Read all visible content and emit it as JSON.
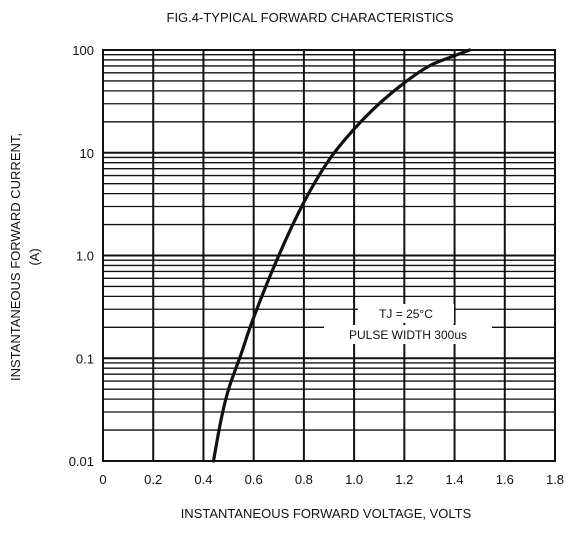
{
  "chart_data": {
    "type": "line",
    "title": "FIG.4-TYPICAL FORWARD CHARACTERISTICS",
    "xlabel": "INSTANTANEOUS FORWARD VOLTAGE, VOLTS",
    "ylabel_line1": "INSTANTANEOUS FORWARD CURRENT,",
    "ylabel_line2": "(A)",
    "x_scale": "linear",
    "y_scale": "log",
    "xlim": [
      0,
      1.8
    ],
    "ylim": [
      0.01,
      100
    ],
    "x_ticks": [
      0,
      0.2,
      0.4,
      0.6,
      0.8,
      1.0,
      1.2,
      1.4,
      1.6,
      1.8
    ],
    "x_tick_labels": [
      "0",
      "0.2",
      "0.4",
      "0.6",
      "0.8",
      "1.0",
      "1.2",
      "1.4",
      "1.6",
      "1.8"
    ],
    "y_ticks": [
      0.01,
      0.1,
      1,
      10,
      100
    ],
    "y_tick_labels": [
      "0.01",
      "0.1",
      "1.0",
      "10",
      "100"
    ],
    "grid": true,
    "annotations": [
      "TJ = 25°C",
      "PULSE WIDTH 300us"
    ],
    "series": [
      {
        "x": [
          0.44,
          0.47,
          0.5,
          0.55,
          0.6,
          0.7,
          0.8,
          0.9,
          1.0,
          1.1,
          1.2,
          1.3,
          1.4,
          1.46
        ],
        "y": [
          0.01,
          0.025,
          0.05,
          0.11,
          0.25,
          1.0,
          3.3,
          8.5,
          17,
          30,
          48,
          70,
          88,
          100
        ]
      }
    ]
  }
}
